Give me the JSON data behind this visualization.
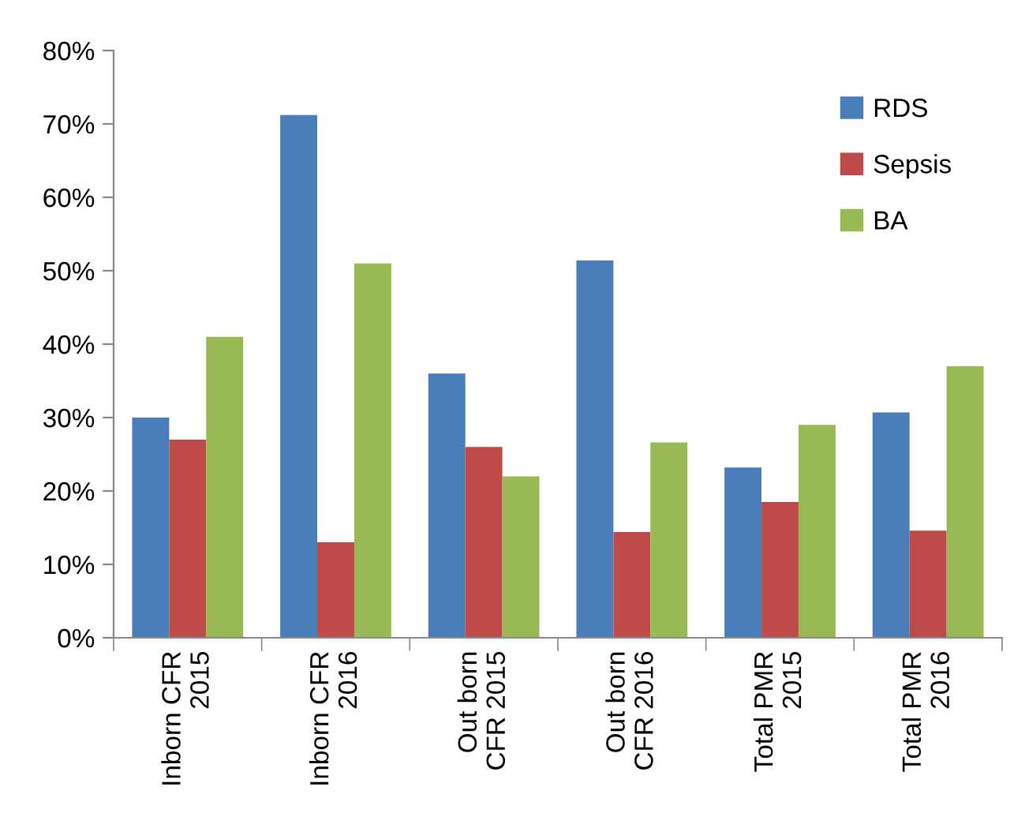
{
  "chart_data": {
    "type": "bar",
    "categories": [
      "Inborn CFR\n2015",
      "Inborn CFR\n2016",
      "Out born\nCFR 2015",
      "Out born\nCFR 2016",
      "Total PMR\n2015",
      "Total PMR\n2016"
    ],
    "series": [
      {
        "name": "RDS",
        "color": "#4a7ebb",
        "values": [
          30,
          71.2,
          36,
          51.4,
          23.2,
          30.7
        ]
      },
      {
        "name": "Sepsis",
        "color": "#be4b48",
        "values": [
          27,
          13,
          26,
          14.4,
          18.5,
          14.6
        ]
      },
      {
        "name": "BA",
        "color": "#98b954",
        "values": [
          41,
          51,
          22,
          26.6,
          29,
          37
        ]
      }
    ],
    "ylim": [
      0,
      80
    ],
    "yticks": [
      {
        "value": 0,
        "label": "0%"
      },
      {
        "value": 10,
        "label": "10%"
      },
      {
        "value": 20,
        "label": "20%"
      },
      {
        "value": 30,
        "label": "30%"
      },
      {
        "value": 40,
        "label": "40%"
      },
      {
        "value": 50,
        "label": "50%"
      },
      {
        "value": 60,
        "label": "60%"
      },
      {
        "value": 70,
        "label": "70%"
      },
      {
        "value": 80,
        "label": "80%"
      }
    ],
    "grid": false,
    "legend": "top right"
  }
}
